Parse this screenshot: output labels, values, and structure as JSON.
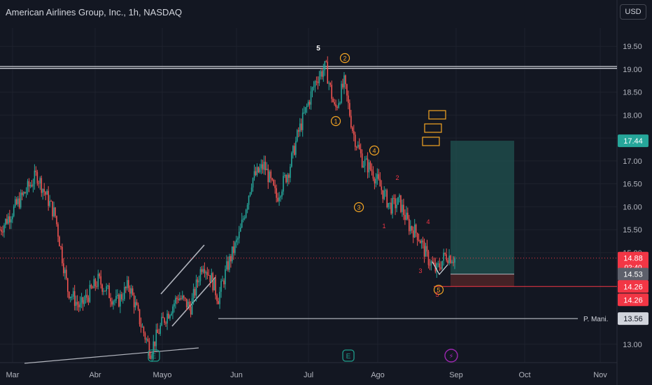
{
  "header": {
    "symbol_title": "American Airlines Group, Inc., 1h, NASDAQ",
    "currency_button": "USD"
  },
  "colors": {
    "background": "#131722",
    "up_candle": "#26a69a",
    "down_candle": "#ef5350",
    "elliott_orange": "#f5a623",
    "elliott_red": "#f23645",
    "target_fill": "#1f4f4d",
    "stop_fill": "#4a2427",
    "current_price": "#f23645",
    "target_price_tag": "#26a69a",
    "earnings_icon": "#1e9b8a",
    "flash_icon": "#9c27b0"
  },
  "chart_data": {
    "type": "candlestick",
    "title": "American Airlines Group, Inc., 1h, NASDAQ",
    "currency": "USD",
    "y_ticks": [
      "13.00",
      "15.00",
      "15.50",
      "16.00",
      "16.50",
      "17.00",
      "17.50",
      "18.00",
      "18.50",
      "19.00",
      "19.50"
    ],
    "ylim": [
      12.6,
      19.9
    ],
    "x_ticks": [
      "Mar",
      "Abr",
      "Mayo",
      "Jun",
      "Jul",
      "Ago",
      "Sep",
      "Oct",
      "Nov"
    ],
    "price_path": [
      {
        "t": 0.0,
        "p": 15.5
      },
      {
        "t": 0.03,
        "p": 16.1
      },
      {
        "t": 0.06,
        "p": 16.7
      },
      {
        "t": 0.09,
        "p": 15.8
      },
      {
        "t": 0.11,
        "p": 14.2
      },
      {
        "t": 0.13,
        "p": 13.8
      },
      {
        "t": 0.16,
        "p": 14.4
      },
      {
        "t": 0.19,
        "p": 13.9
      },
      {
        "t": 0.21,
        "p": 14.3
      },
      {
        "t": 0.23,
        "p": 13.4
      },
      {
        "t": 0.245,
        "p": 12.85
      },
      {
        "t": 0.265,
        "p": 13.5
      },
      {
        "t": 0.29,
        "p": 14.05
      },
      {
        "t": 0.31,
        "p": 13.8
      },
      {
        "t": 0.33,
        "p": 14.8
      },
      {
        "t": 0.345,
        "p": 14.4
      },
      {
        "t": 0.355,
        "p": 14.0
      },
      {
        "t": 0.37,
        "p": 14.7
      },
      {
        "t": 0.39,
        "p": 15.4
      },
      {
        "t": 0.41,
        "p": 16.6
      },
      {
        "t": 0.43,
        "p": 16.9
      },
      {
        "t": 0.45,
        "p": 16.2
      },
      {
        "t": 0.47,
        "p": 16.8
      },
      {
        "t": 0.485,
        "p": 17.6
      },
      {
        "t": 0.5,
        "p": 18.2
      },
      {
        "t": 0.515,
        "p": 18.8
      },
      {
        "t": 0.53,
        "p": 19.05
      },
      {
        "t": 0.545,
        "p": 18.1
      },
      {
        "t": 0.56,
        "p": 18.7
      },
      {
        "t": 0.575,
        "p": 17.6
      },
      {
        "t": 0.59,
        "p": 17.0
      },
      {
        "t": 0.605,
        "p": 16.8
      },
      {
        "t": 0.62,
        "p": 16.4
      },
      {
        "t": 0.635,
        "p": 16.0
      },
      {
        "t": 0.65,
        "p": 16.1
      },
      {
        "t": 0.665,
        "p": 15.6
      },
      {
        "t": 0.68,
        "p": 15.4
      },
      {
        "t": 0.695,
        "p": 14.9
      },
      {
        "t": 0.71,
        "p": 14.6
      },
      {
        "t": 0.725,
        "p": 14.95
      },
      {
        "t": 0.74,
        "p": 14.88
      }
    ],
    "last_price": 14.88,
    "current_price_tag": {
      "value": "14.88",
      "countdown": "02:40"
    },
    "price_tags": [
      "17.44",
      "14.53",
      "14.26",
      "14.26",
      "13.56"
    ],
    "horizontal_lines": [
      {
        "price": 19.02,
        "label": ""
      },
      {
        "price": 19.06,
        "label": ""
      },
      {
        "price": 14.26,
        "label": ""
      },
      {
        "price": 13.56,
        "label": "P. Mani."
      }
    ],
    "position": {
      "entry": 14.53,
      "target": 17.44,
      "stop": 14.26
    },
    "elliott_orange_labels": [
      "1",
      "2",
      "3",
      "4",
      "5"
    ],
    "elliott_red_labels": [
      "1",
      "2",
      "3",
      "4",
      "5"
    ],
    "peak_label": "5",
    "markers": [
      "E",
      "E",
      "flash"
    ]
  }
}
